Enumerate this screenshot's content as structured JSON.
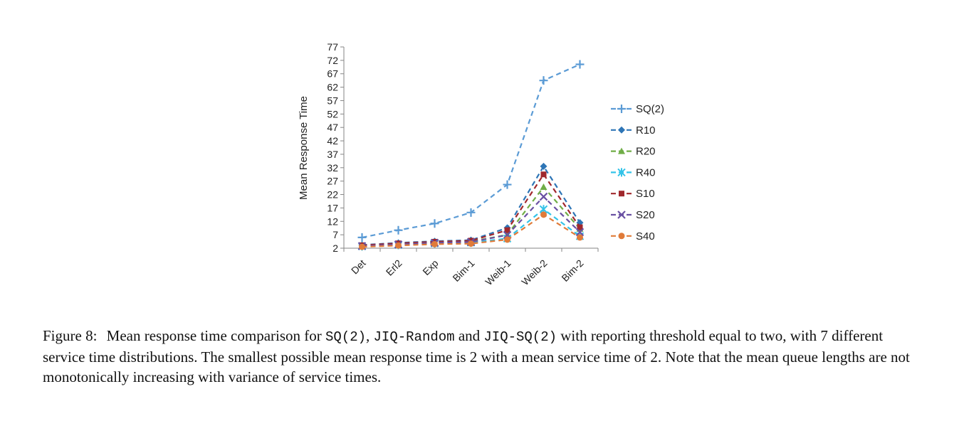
{
  "chart_data": {
    "type": "line",
    "ylabel": "Mean Response Time",
    "xlabel": "",
    "categories": [
      "Det",
      "Erl2",
      "Exp",
      "Bim-1",
      "Weib-1",
      "Weib-2",
      "Bim-2"
    ],
    "yticks": [
      2,
      7,
      12,
      17,
      22,
      27,
      32,
      37,
      42,
      47,
      52,
      57,
      62,
      67,
      72,
      77
    ],
    "ylim": [
      2,
      77
    ],
    "grid": false,
    "legend_position": "right",
    "series": [
      {
        "name": "SQ(2)",
        "color": "#5b9bd5",
        "marker": "plus",
        "values": [
          6.0,
          8.7,
          11.2,
          15.3,
          25.7,
          64.5,
          70.5
        ]
      },
      {
        "name": "R10",
        "color": "#2e75b6",
        "marker": "diamond",
        "values": [
          3.2,
          4.0,
          4.6,
          5.0,
          9.6,
          32.5,
          11.5
        ]
      },
      {
        "name": "R20",
        "color": "#70ad47",
        "marker": "triangle",
        "values": [
          2.9,
          3.5,
          4.1,
          4.5,
          7.0,
          24.8,
          9.2
        ]
      },
      {
        "name": "R40",
        "color": "#33c3e8",
        "marker": "star",
        "values": [
          2.7,
          3.2,
          3.8,
          4.1,
          5.6,
          16.5,
          6.5
        ]
      },
      {
        "name": "S10",
        "color": "#a0282d",
        "marker": "square",
        "values": [
          3.1,
          3.8,
          4.4,
          4.8,
          8.7,
          29.5,
          9.8
        ]
      },
      {
        "name": "S20",
        "color": "#6a51a3",
        "marker": "x",
        "values": [
          2.8,
          3.4,
          4.0,
          4.3,
          6.9,
          21.2,
          8.0
        ]
      },
      {
        "name": "S40",
        "color": "#e07b39",
        "marker": "circle",
        "values": [
          2.5,
          3.0,
          3.5,
          3.7,
          5.2,
          14.5,
          6.0
        ]
      }
    ]
  },
  "caption": {
    "label": "Figure 8:",
    "text_1": "Mean response time comparison for ",
    "code_1": "SQ(2)",
    "text_2": ", ",
    "code_2": "JIQ-Random",
    "text_3": " and ",
    "code_3": "JIQ-SQ(2)",
    "text_4": " with reporting threshold equal to two, with 7 different service time distributions. The smallest possible mean response time is 2 with a mean service time of 2. Note that the mean queue lengths are not monotonically increasing with variance of service times."
  }
}
